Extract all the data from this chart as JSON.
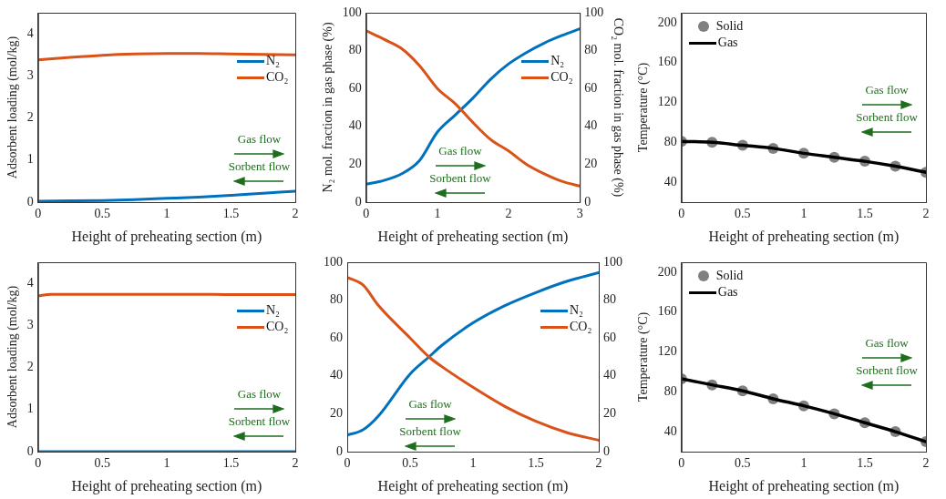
{
  "chart_data": [
    {
      "type": "line",
      "xlabel": "Height of preheating section (m)",
      "ylabel": "Adsorbent loading (mol/kg)",
      "xlim": [
        0,
        2
      ],
      "xticks": [
        0,
        0.5,
        1,
        1.5,
        2
      ],
      "ylim": [
        0,
        4.5
      ],
      "yticks": [
        0,
        1,
        2,
        3,
        4
      ],
      "legend": "right",
      "annotations": [
        "Gas flow",
        "Sorbent flow"
      ],
      "x": [
        0,
        0.25,
        0.5,
        0.75,
        1,
        1.25,
        1.5,
        1.75,
        2
      ],
      "series": [
        {
          "name": "N₂",
          "color": "#0072bd",
          "values": [
            0.02,
            0.03,
            0.04,
            0.06,
            0.09,
            0.12,
            0.16,
            0.21,
            0.26
          ]
        },
        {
          "name": "CO₂",
          "color": "#d95319",
          "values": [
            3.38,
            3.44,
            3.49,
            3.52,
            3.53,
            3.53,
            3.52,
            3.51,
            3.5
          ]
        }
      ]
    },
    {
      "type": "line",
      "xlabel": "Height of preheating section (m)",
      "ylabel": "N₂ mol. fraction in gas phase (%)",
      "y2label": "CO₂ mol. fraction in gas phase (%)",
      "xlim": [
        0,
        3
      ],
      "xticks": [
        0,
        1,
        2,
        3
      ],
      "ylim": [
        0,
        100
      ],
      "yticks": [
        0,
        20,
        40,
        60,
        80,
        100
      ],
      "y2lim": [
        0,
        100
      ],
      "y2ticks": [
        0,
        20,
        40,
        60,
        80,
        100
      ],
      "legend": "right",
      "annotations": [
        "Gas flow",
        "Sorbent flow"
      ],
      "x": [
        0,
        0.25,
        0.5,
        0.75,
        1,
        1.25,
        1.5,
        1.75,
        2,
        2.25,
        2.5,
        2.75,
        3
      ],
      "series": [
        {
          "name": "N₂",
          "color": "#0072bd",
          "values": [
            9.5,
            11.5,
            15,
            22,
            37,
            46,
            55,
            65,
            73,
            79,
            84,
            88,
            91.5
          ]
        },
        {
          "name": "CO₂",
          "color": "#d95319",
          "values": [
            90.5,
            86,
            81,
            72,
            60,
            52,
            42,
            33,
            27,
            20,
            15,
            11,
            8.5
          ]
        }
      ]
    },
    {
      "type": "line",
      "xlabel": "Height of preheating section (m)",
      "ylabel": "Temperature (°C)",
      "xlim": [
        0,
        2
      ],
      "xticks": [
        0,
        0.5,
        1,
        1.5,
        2
      ],
      "ylim": [
        20,
        210
      ],
      "yticks": [
        40,
        80,
        120,
        160,
        200
      ],
      "legend": "top left",
      "x": [
        0,
        0.25,
        0.5,
        0.75,
        1,
        1.25,
        1.5,
        1.75,
        2
      ],
      "annotations": [
        "Gas flow",
        "Sorbent flow"
      ],
      "series": [
        {
          "name": "Solid",
          "type": "scatter",
          "marker": "circle",
          "color": "#808080",
          "values": [
            81,
            80,
            77,
            74,
            69,
            65,
            61,
            56,
            50
          ]
        },
        {
          "name": "Gas",
          "color": "#000000",
          "values": [
            81,
            80,
            77,
            74,
            69,
            65,
            61,
            56,
            50
          ]
        }
      ]
    },
    {
      "type": "line",
      "xlabel": "Height of preheating section (m)",
      "ylabel": "Adsorbent loading (mol/kg)",
      "xlim": [
        0,
        2
      ],
      "xticks": [
        0,
        0.5,
        1,
        1.5,
        2
      ],
      "ylim": [
        0,
        4.5
      ],
      "yticks": [
        0,
        1,
        2,
        3,
        4
      ],
      "legend": "right",
      "annotations": [
        "Gas flow",
        "Sorbent flow"
      ],
      "x": [
        0,
        0.1,
        0.25,
        0.5,
        0.75,
        1,
        1.25,
        1.5,
        1.75,
        2
      ],
      "series": [
        {
          "name": "N₂",
          "color": "#0072bd",
          "values": [
            0,
            0,
            0,
            0,
            0,
            0,
            0,
            0,
            0,
            0
          ]
        },
        {
          "name": "CO₂",
          "color": "#d95319",
          "values": [
            3.7,
            3.74,
            3.74,
            3.74,
            3.74,
            3.74,
            3.74,
            3.73,
            3.73,
            3.73
          ]
        }
      ]
    },
    {
      "type": "line",
      "xlabel": "Height of preheating section (m)",
      "xlim": [
        0,
        2
      ],
      "xticks": [
        0,
        0.5,
        1,
        1.5,
        2
      ],
      "ylim": [
        0,
        100
      ],
      "yticks": [
        0,
        20,
        40,
        60,
        80,
        100
      ],
      "y2lim": [
        0,
        100
      ],
      "y2ticks": [
        0,
        20,
        40,
        60,
        80,
        100
      ],
      "legend": "right",
      "annotations": [
        "Gas flow",
        "Sorbent flow"
      ],
      "x": [
        0,
        0.125,
        0.25,
        0.5,
        0.65,
        0.75,
        1,
        1.25,
        1.5,
        1.75,
        2
      ],
      "series": [
        {
          "name": "N₂",
          "color": "#0072bd",
          "values": [
            8.7,
            11.5,
            19,
            41,
            50,
            56,
            68,
            77,
            84,
            90,
            94.5
          ]
        },
        {
          "name": "CO₂",
          "color": "#d95319",
          "values": [
            92,
            88,
            77,
            60,
            50,
            45,
            34,
            24,
            16,
            10,
            6
          ]
        }
      ]
    },
    {
      "type": "line",
      "xlabel": "Height of preheating section (m)",
      "ylabel": "Temperature (°C)",
      "xlim": [
        0,
        2
      ],
      "xticks": [
        0,
        0.5,
        1,
        1.5,
        2
      ],
      "ylim": [
        20,
        210
      ],
      "yticks": [
        40,
        80,
        120,
        160,
        200
      ],
      "legend": "top left",
      "x": [
        0,
        0.25,
        0.5,
        0.75,
        1,
        1.25,
        1.5,
        1.75,
        2
      ],
      "annotations": [
        "Gas flow",
        "Sorbent flow"
      ],
      "series": [
        {
          "name": "Solid",
          "type": "scatter",
          "marker": "circle",
          "color": "#808080",
          "values": [
            93,
            87,
            81,
            73,
            66,
            58,
            49,
            40,
            30
          ]
        },
        {
          "name": "Gas",
          "color": "#000000",
          "values": [
            93,
            87,
            81,
            73,
            66,
            58,
            49,
            40,
            30
          ]
        }
      ]
    }
  ]
}
